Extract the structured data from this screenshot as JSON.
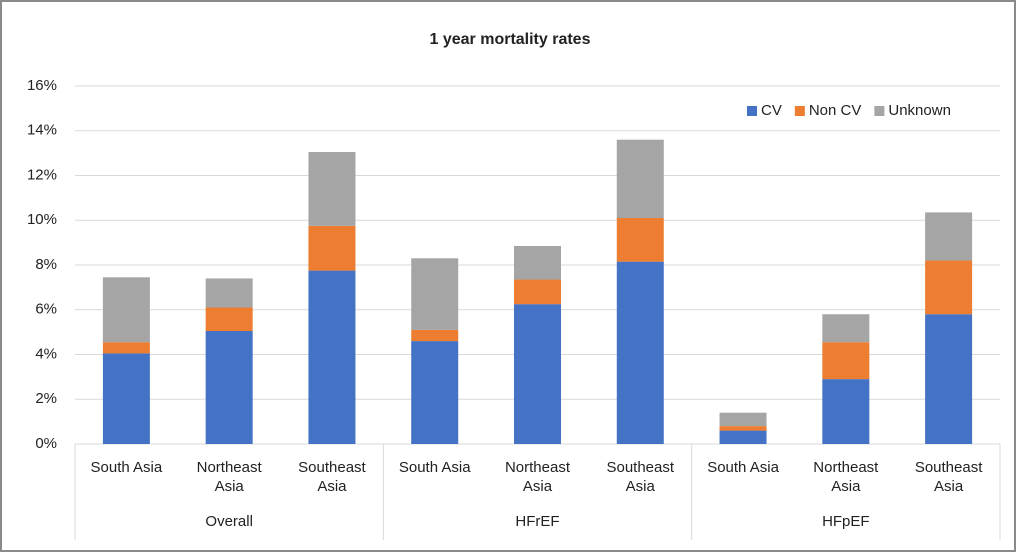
{
  "chart_data": {
    "type": "stacked-bar",
    "title": "1 year mortality rates",
    "categories": [
      "South Asia",
      "Northeast Asia",
      "Southeast Asia",
      "South Asia",
      "Northeast Asia",
      "Southeast Asia",
      "South Asia",
      "Northeast Asia",
      "Southeast Asia"
    ],
    "groups": [
      "Overall",
      "HFrEF",
      "HFpEF"
    ],
    "series": [
      {
        "name": "CV",
        "color": "#4472c4",
        "values": [
          4.05,
          5.05,
          7.75,
          4.6,
          6.25,
          8.15,
          0.6,
          2.9,
          5.8
        ]
      },
      {
        "name": "Non CV",
        "color": "#ed7d31",
        "values": [
          0.5,
          1.05,
          2.0,
          0.5,
          1.1,
          1.95,
          0.2,
          1.65,
          2.4
        ]
      },
      {
        "name": "Unknown",
        "color": "#a5a5a5",
        "values": [
          2.9,
          1.3,
          3.3,
          3.2,
          1.5,
          3.5,
          0.6,
          1.25,
          2.15
        ]
      }
    ],
    "ylim": [
      0,
      16
    ],
    "yticks": [
      {
        "value": 0,
        "label": "0%"
      },
      {
        "value": 2,
        "label": "2%"
      },
      {
        "value": 4,
        "label": "4%"
      },
      {
        "value": 6,
        "label": "6%"
      },
      {
        "value": 8,
        "label": "8%"
      },
      {
        "value": 10,
        "label": "10%"
      },
      {
        "value": 12,
        "label": "12%"
      },
      {
        "value": 14,
        "label": "14%"
      },
      {
        "value": 16,
        "label": "16%"
      }
    ],
    "grid": true,
    "legend": "top-right"
  }
}
